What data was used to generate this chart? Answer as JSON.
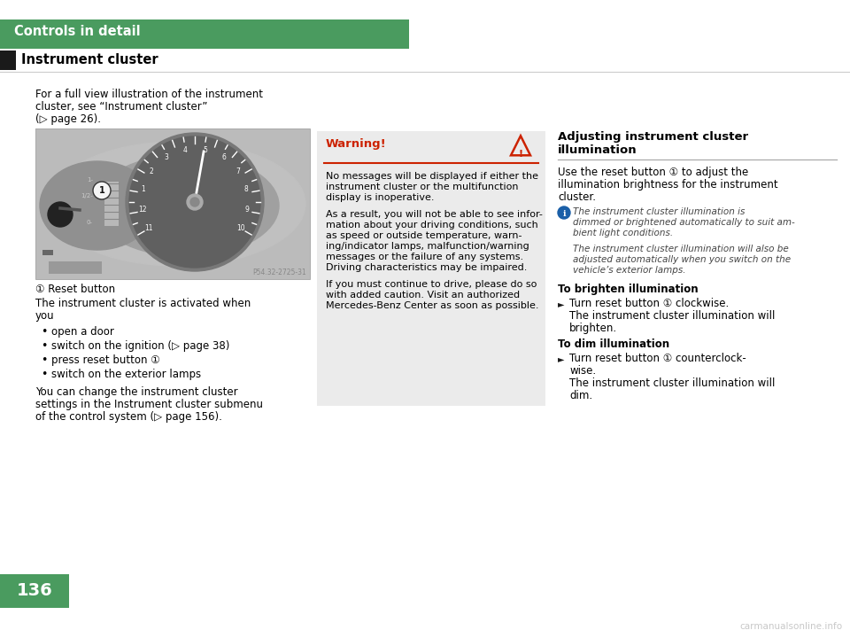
{
  "bg_color": "#ffffff",
  "green_color": "#4a9b5f",
  "black_color": "#1a1a1a",
  "warning_bg": "#ebebeb",
  "warning_red": "#cc2200",
  "header_text": "Controls in detail",
  "section_title": "Instrument cluster",
  "left_intro": "For a full view illustration of the instrument\ncluster, see “Instrument cluster”\n(▷ page 26).",
  "img_ref": "P54.32-2725-31",
  "caption": "① Reset button",
  "body1": "The instrument cluster is activated when\nyou",
  "bullets": [
    "open a door",
    "switch on the ignition (▷ page 38)",
    "press reset button ①",
    "switch on the exterior lamps"
  ],
  "body2": "You can change the instrument cluster\nsettings in the Instrument cluster submenu\nof the control system (▷ page 156).",
  "warn_title": "Warning!",
  "warn_body": "No messages will be displayed if either the\ninstrument cluster or the multifunction\ndisplay is inoperative.\n\nAs a result, you will not be able to see infor-\nmation about your driving conditions, such\nas speed or outside temperature, warn-\ning/indicator lamps, malfunction/warning\nmessages or the failure of any systems.\nDriving characteristics may be impaired.\n\nIf you must continue to drive, please do so\nwith added caution. Visit an authorized\nMercedes-Benz Center as soon as possible.",
  "right_title": "Adjusting instrument cluster\nillumination",
  "right_body1": "Use the reset button ① to adjust the\nillumination brightness for the instrument\ncluster.",
  "info_line1": "The instrument cluster illumination is",
  "info_line2": "dimmed or brightened automatically to suit am-",
  "info_line3": "bient light conditions.",
  "info_line4": "The instrument cluster illumination will also be",
  "info_line5": "adjusted automatically when you switch on the",
  "info_line6": "vehicle’s exterior lamps.",
  "brighten_title": "To brighten illumination",
  "brighten_b1": "Turn reset button ① clockwise.",
  "brighten_b2": "The instrument cluster illumination will",
  "brighten_b3": "brighten.",
  "dim_title": "To dim illumination",
  "dim_b1": "Turn reset button ① counterclock-",
  "dim_b2": "wise.",
  "dim_b3": "The instrument cluster illumination will",
  "dim_b4": "dim.",
  "page_num": "136",
  "watermark": "carmanualsonline.info"
}
